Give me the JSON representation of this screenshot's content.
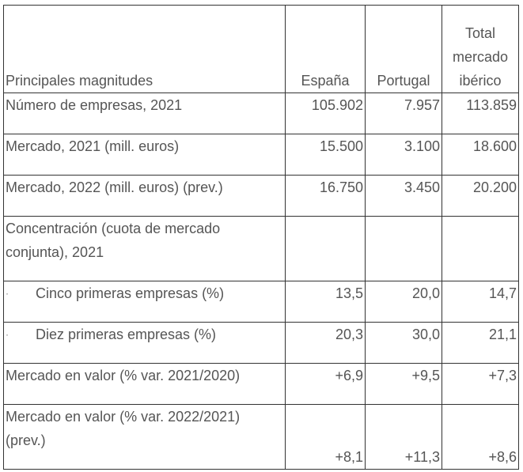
{
  "table": {
    "header": {
      "label": "Principales magnitudes",
      "col1": "España",
      "col2": "Portugal",
      "col3_lines": [
        "Total",
        "mercado",
        "ibérico"
      ]
    },
    "rows": [
      {
        "label": "Número de empresas, 2021",
        "v1": "105.902",
        "v2": "7.957",
        "v3": "113.859"
      },
      {
        "label": "Mercado, 2021 (mill. euros)",
        "v1": "15.500",
        "v2": "3.100",
        "v3": "18.600"
      },
      {
        "label": "Mercado, 2022 (mill. euros) (prev.)",
        "v1": "16.750",
        "v2": "3.450",
        "v3": "20.200"
      },
      {
        "label_lines": [
          "Concentración (cuota de mercado",
          "conjunta), 2021"
        ],
        "v1": "",
        "v2": "",
        "v3": ""
      },
      {
        "bullet": "·",
        "label": "Cinco primeras empresas (%)",
        "v1": "13,5",
        "v2": "20,0",
        "v3": "14,7"
      },
      {
        "bullet": "·",
        "label": "Diez primeras empresas (%)",
        "v1": "20,3",
        "v2": "30,0",
        "v3": "21,1"
      },
      {
        "label": "Mercado en valor (% var. 2021/2020)",
        "v1": "+6,9",
        "v2": "+9,5",
        "v3": "+7,3"
      },
      {
        "label_lines": [
          "Mercado en valor (% var. 2022/2021)",
          "(prev.)"
        ],
        "v1": "+8,1",
        "v2": "+11,3",
        "v3": "+8,6"
      }
    ]
  }
}
